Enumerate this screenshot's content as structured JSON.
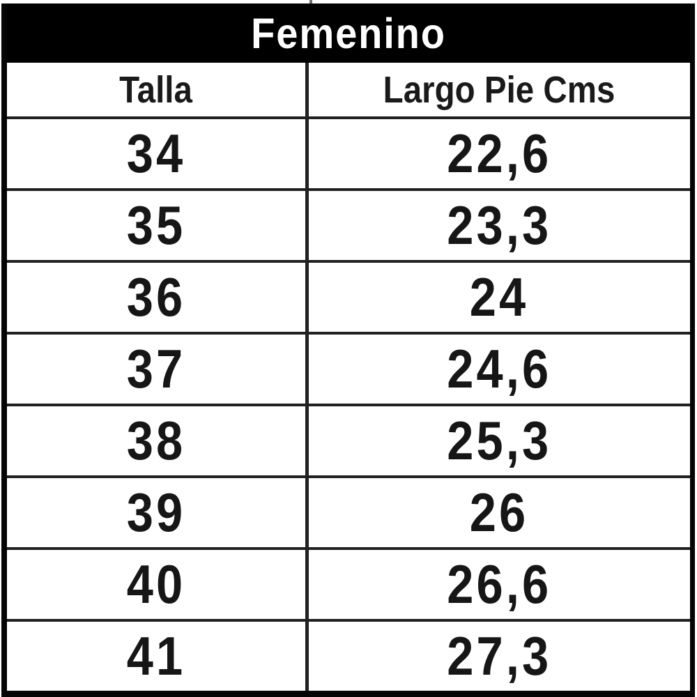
{
  "table": {
    "title": "Femenino",
    "columns": [
      "Talla",
      "Largo Pie Cms"
    ],
    "rows": [
      [
        "34",
        "22,6"
      ],
      [
        "35",
        "23,3"
      ],
      [
        "36",
        "24"
      ],
      [
        "37",
        "24,6"
      ],
      [
        "38",
        "25,3"
      ],
      [
        "39",
        "26"
      ],
      [
        "40",
        "26,6"
      ],
      [
        "41",
        "27,3"
      ]
    ]
  },
  "colors": {
    "title_band_bg": "#000000",
    "title_text": "#ffffff",
    "grid_line": "#212121",
    "outer_border": "#050505",
    "cell_text": "#161616",
    "background": "#ffffff"
  },
  "chart_data": {
    "type": "table",
    "title": "Femenino",
    "columns": [
      "Talla",
      "Largo Pie Cms"
    ],
    "rows": [
      [
        34,
        22.6
      ],
      [
        35,
        23.3
      ],
      [
        36,
        24
      ],
      [
        37,
        24.6
      ],
      [
        38,
        25.3
      ],
      [
        39,
        26
      ],
      [
        40,
        26.6
      ],
      [
        41,
        27.3
      ]
    ],
    "notes": "Decimal values displayed with comma separator (Spanish locale)"
  }
}
